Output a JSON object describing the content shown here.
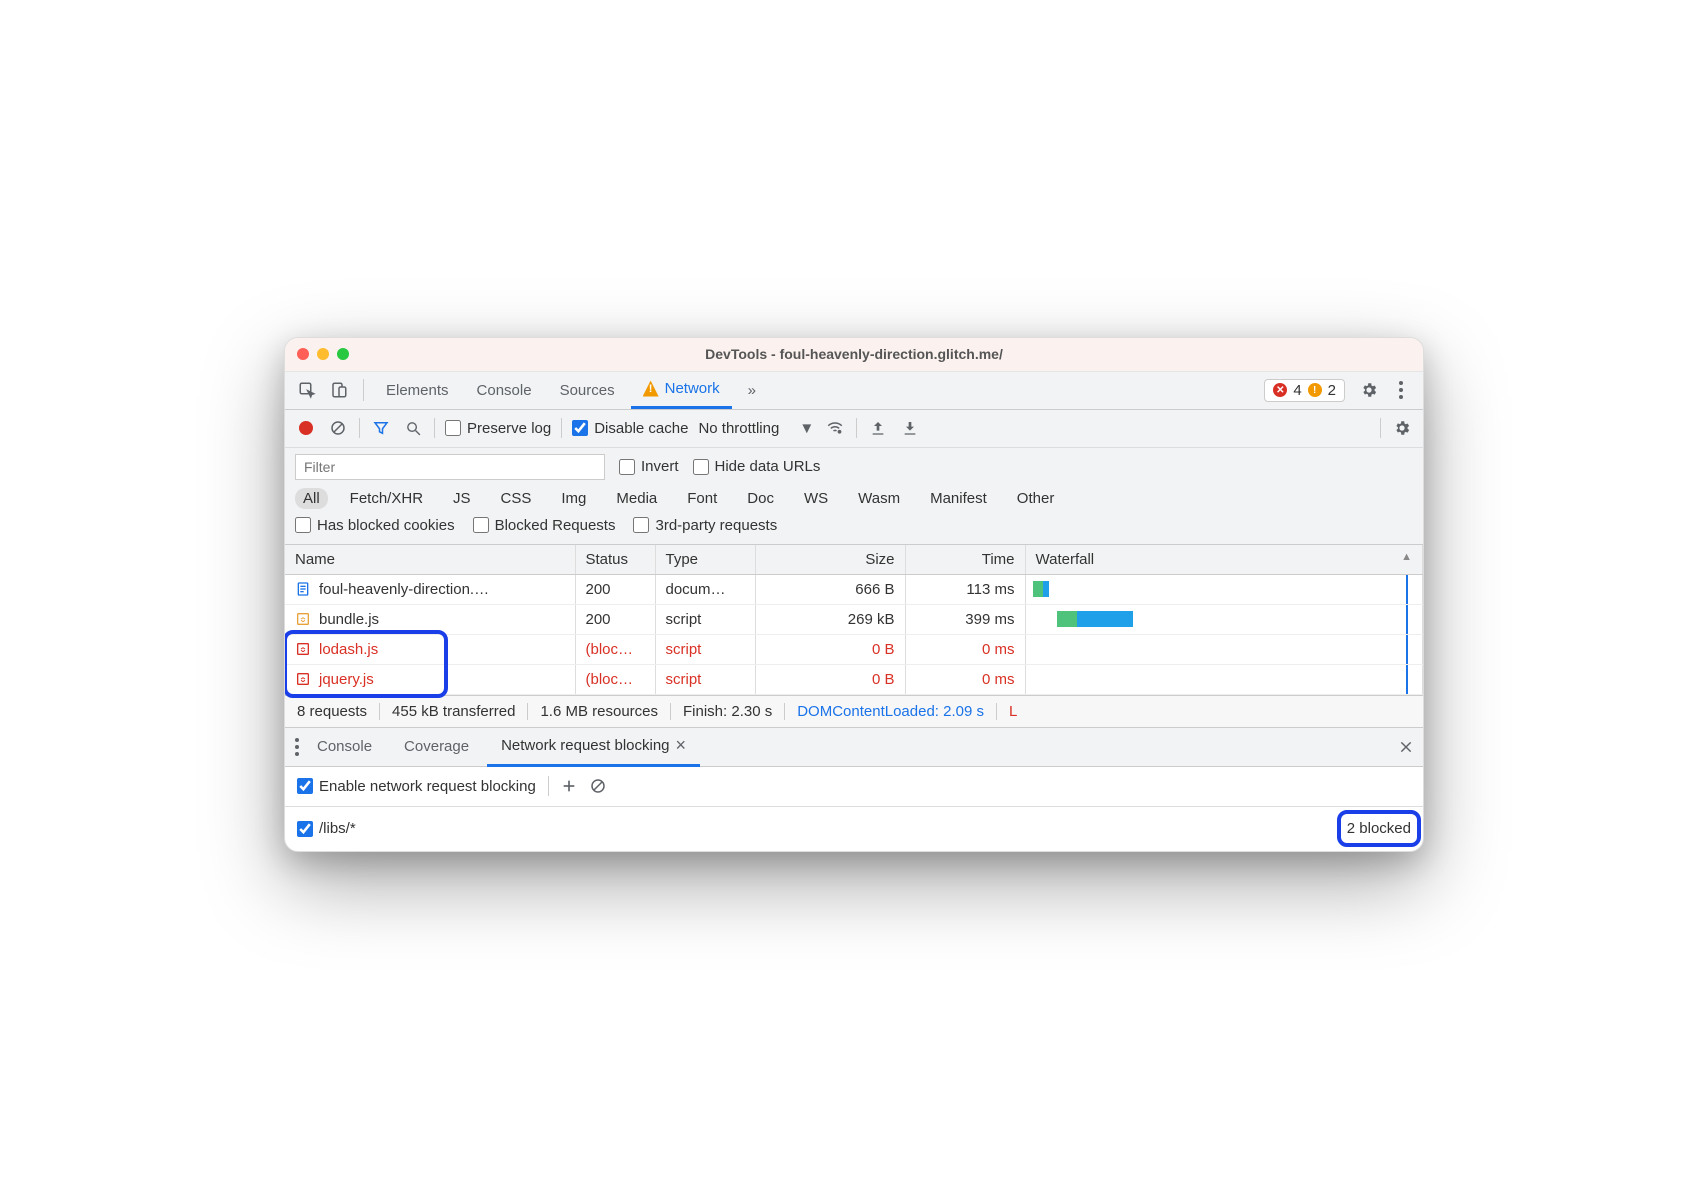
{
  "window": {
    "title": "DevTools - foul-heavenly-direction.glitch.me/"
  },
  "traffic_colors": {
    "close": "#ff5f57",
    "minimize": "#febc2e",
    "zoom": "#28c840"
  },
  "tabs": {
    "items": [
      "Elements",
      "Console",
      "Sources",
      "Network"
    ],
    "active_index": 3,
    "overflow_glyph": "»",
    "has_warning_on_active": true
  },
  "badges": {
    "error_count": "4",
    "warning_count": "2",
    "error_color": "#d93025",
    "warning_color": "#f29900"
  },
  "toolbar": {
    "preserve_log_label": "Preserve log",
    "preserve_log_checked": false,
    "disable_cache_label": "Disable cache",
    "disable_cache_checked": true,
    "throttling_label": "No throttling"
  },
  "filter": {
    "placeholder": "Filter",
    "invert_label": "Invert",
    "invert_checked": false,
    "hide_data_urls_label": "Hide data URLs",
    "hide_data_urls_checked": false,
    "types": [
      "All",
      "Fetch/XHR",
      "JS",
      "CSS",
      "Img",
      "Media",
      "Font",
      "Doc",
      "WS",
      "Wasm",
      "Manifest",
      "Other"
    ],
    "active_type_index": 0,
    "has_blocked_cookies_label": "Has blocked cookies",
    "blocked_requests_label": "Blocked Requests",
    "third_party_label": "3rd-party requests"
  },
  "table": {
    "columns": [
      "Name",
      "Status",
      "Type",
      "Size",
      "Time",
      "Waterfall"
    ],
    "sort_column_index": 5,
    "rows": [
      {
        "name": "foul-heavenly-direction.…",
        "status": "200",
        "type": "docum…",
        "size": "666 B",
        "time": "113 ms",
        "blocked": false,
        "icon": "doc",
        "waterfall": {
          "left_pct": 2,
          "segments": [
            {
              "w_pct": 2.5,
              "color": "#4fc27b"
            },
            {
              "w_pct": 1.5,
              "color": "#1fa0e8"
            }
          ]
        }
      },
      {
        "name": "bundle.js",
        "status": "200",
        "type": "script",
        "size": "269 kB",
        "time": "399 ms",
        "blocked": false,
        "icon": "js",
        "waterfall": {
          "left_pct": 8,
          "segments": [
            {
              "w_pct": 5,
              "color": "#4fc27b"
            },
            {
              "w_pct": 14,
              "color": "#1fa0e8"
            }
          ]
        }
      },
      {
        "name": "lodash.js",
        "status": "(bloc…",
        "type": "script",
        "size": "0 B",
        "time": "0 ms",
        "blocked": true,
        "icon": "js-blocked",
        "waterfall": null
      },
      {
        "name": "jquery.js",
        "status": "(bloc…",
        "type": "script",
        "size": "0 B",
        "time": "0 ms",
        "blocked": true,
        "icon": "js-blocked",
        "waterfall": null
      }
    ],
    "marker_line_pct": 96,
    "marker_color": "#1a73e8"
  },
  "summary": {
    "requests": "8 requests",
    "transferred": "455 kB transferred",
    "resources": "1.6 MB resources",
    "finish": "Finish: 2.30 s",
    "dcl": "DOMContentLoaded: 2.09 s",
    "load": "L"
  },
  "drawer": {
    "tabs": [
      "Console",
      "Coverage",
      "Network request blocking"
    ],
    "active_index": 2,
    "enable_label": "Enable network request blocking",
    "enable_checked": true,
    "pattern": "/libs/*",
    "pattern_checked": true,
    "blocked_count_text": "2 blocked"
  },
  "colors": {
    "accent": "#1a73e8",
    "blocked_text": "#d93025",
    "panel_bg": "#f1f3f4",
    "border": "#ccc",
    "highlight_ring": "#1a3ee8"
  }
}
